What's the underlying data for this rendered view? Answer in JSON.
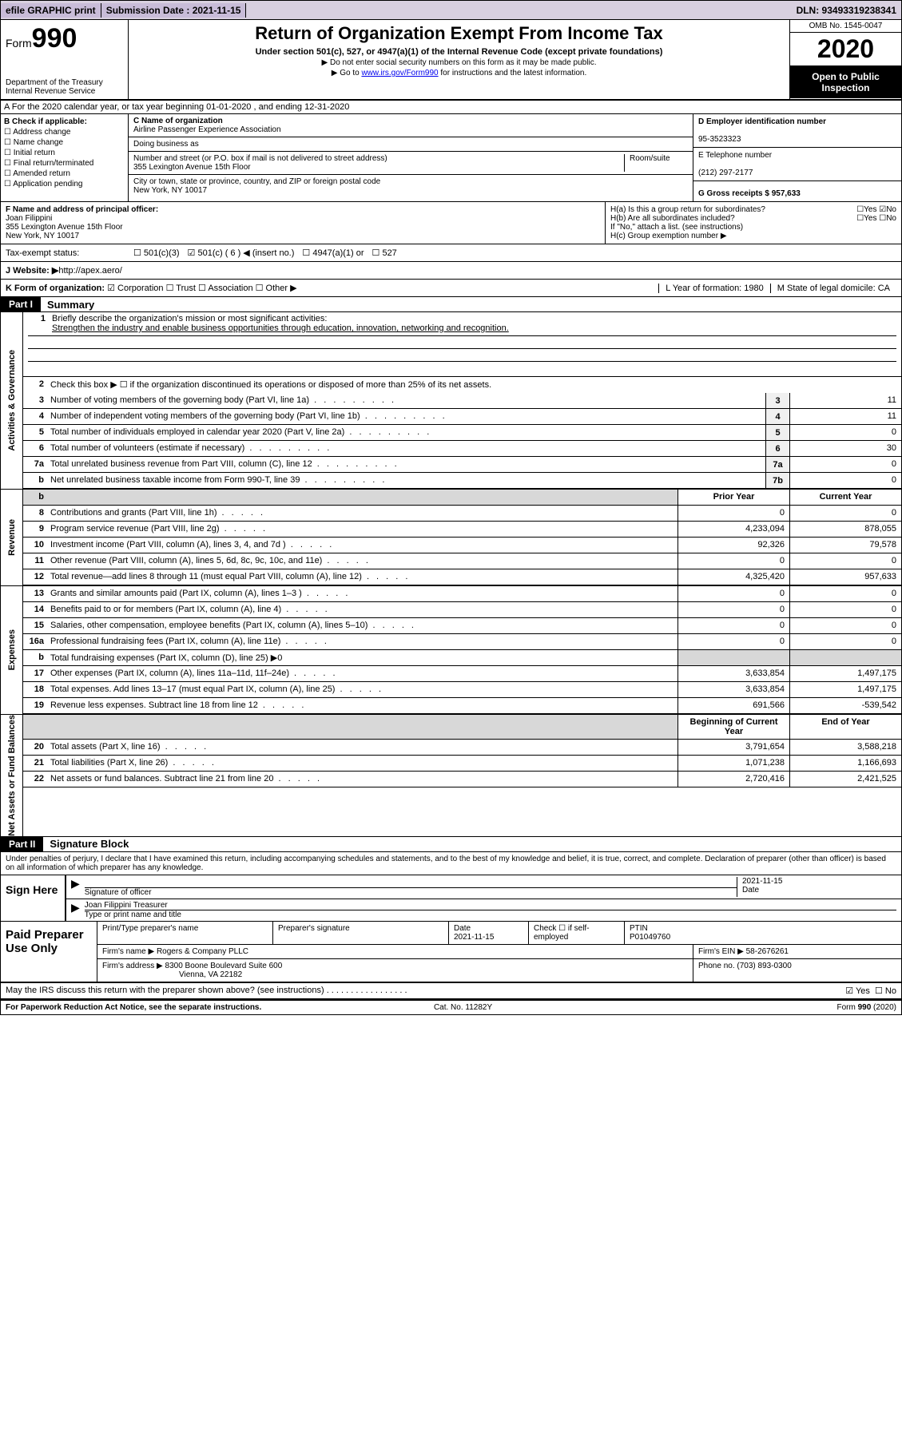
{
  "colors": {
    "topbar_bg": "#d8d0e0",
    "black": "#000000",
    "shade": "#d8d8d8",
    "link": "#0000ee"
  },
  "topbar": {
    "efile": "efile GRAPHIC print",
    "submission_label": "Submission Date : 2021-11-15",
    "dln": "DLN: 93493319238341"
  },
  "header": {
    "form_label": "Form",
    "form_number": "990",
    "dept": "Department of the Treasury\nInternal Revenue Service",
    "title": "Return of Organization Exempt From Income Tax",
    "subtitle": "Under section 501(c), 527, or 4947(a)(1) of the Internal Revenue Code (except private foundations)",
    "note1": "▶ Do not enter social security numbers on this form as it may be made public.",
    "note2_pre": "▶ Go to ",
    "note2_link": "www.irs.gov/Form990",
    "note2_post": " for instructions and the latest information.",
    "omb": "OMB No. 1545-0047",
    "year": "2020",
    "public": "Open to Public Inspection"
  },
  "section_a": "A For the 2020 calendar year, or tax year beginning 01-01-2020   , and ending 12-31-2020",
  "col_b": {
    "label": "B Check if applicable:",
    "items": [
      "☐ Address change",
      "☐ Name change",
      "☐ Initial return",
      "☐ Final return/terminated",
      "☐ Amended return",
      "☐ Application pending"
    ]
  },
  "col_c": {
    "name_label": "C Name of organization",
    "name": "Airline Passenger Experience Association",
    "dba_label": "Doing business as",
    "dba": "",
    "street_label": "Number and street (or P.O. box if mail is not delivered to street address)",
    "room_label": "Room/suite",
    "street": "355 Lexington Avenue 15th Floor",
    "city_label": "City or town, state or province, country, and ZIP or foreign postal code",
    "city": "New York, NY  10017"
  },
  "col_d": {
    "ein_label": "D Employer identification number",
    "ein": "95-3523323",
    "phone_label": "E Telephone number",
    "phone": "(212) 297-2177",
    "gross_label": "G Gross receipts $ 957,633"
  },
  "box_f": {
    "label": "F  Name and address of principal officer:",
    "name": "Joan Filippini",
    "addr1": "355 Lexington Avenue 15th Floor",
    "addr2": "New York, NY  10017",
    "ha": "H(a)  Is this a group return for subordinates?",
    "ha_yes": "☐Yes",
    "ha_no": "☑No",
    "hb": "H(b)  Are all subordinates included?",
    "hb_yes": "☐Yes",
    "hb_no": "☐No",
    "hb_note": "If \"No,\" attach a list. (see instructions)",
    "hc": "H(c)  Group exemption number ▶"
  },
  "tax_status": {
    "label": "Tax-exempt status:",
    "c3": "☐  501(c)(3)",
    "c_checked": "☑  501(c) ( 6 ) ◀ (insert no.)",
    "c4947": "☐  4947(a)(1) or",
    "c527": "☐  527"
  },
  "website": {
    "label": "J  Website: ▶  ",
    "url": "http://apex.aero/"
  },
  "section_k": {
    "label": "K Form of organization:",
    "corp": "☑  Corporation",
    "trust": "☐  Trust",
    "assoc": "☐  Association",
    "other": "☐  Other ▶",
    "year_label": "L Year of formation: 1980",
    "state_label": "M State of legal domicile: CA"
  },
  "part1": {
    "header": "Part I",
    "title": "Summary"
  },
  "governance": {
    "label": "Activities & Governance",
    "q1": "Briefly describe the organization's mission or most significant activities:",
    "mission": "Strengthen the industry and enable business opportunities through education, innovation, networking and recognition.",
    "q2": "Check this box ▶ ☐  if the organization discontinued its operations or disposed of more than 25% of its net assets.",
    "rows": [
      {
        "n": "3",
        "d": "Number of voting members of the governing body (Part VI, line 1a)",
        "box": "3",
        "v": "11"
      },
      {
        "n": "4",
        "d": "Number of independent voting members of the governing body (Part VI, line 1b)",
        "box": "4",
        "v": "11"
      },
      {
        "n": "5",
        "d": "Total number of individuals employed in calendar year 2020 (Part V, line 2a)",
        "box": "5",
        "v": "0"
      },
      {
        "n": "6",
        "d": "Total number of volunteers (estimate if necessary)",
        "box": "6",
        "v": "30"
      },
      {
        "n": "7a",
        "d": "Total unrelated business revenue from Part VIII, column (C), line 12",
        "box": "7a",
        "v": "0"
      },
      {
        "n": "b",
        "d": "Net unrelated business taxable income from Form 990-T, line 39",
        "box": "7b",
        "v": "0"
      }
    ]
  },
  "year_header": {
    "prior": "Prior Year",
    "current": "Current Year"
  },
  "revenue": {
    "label": "Revenue",
    "rows": [
      {
        "n": "8",
        "d": "Contributions and grants (Part VIII, line 1h)",
        "p": "0",
        "c": "0"
      },
      {
        "n": "9",
        "d": "Program service revenue (Part VIII, line 2g)",
        "p": "4,233,094",
        "c": "878,055"
      },
      {
        "n": "10",
        "d": "Investment income (Part VIII, column (A), lines 3, 4, and 7d )",
        "p": "92,326",
        "c": "79,578"
      },
      {
        "n": "11",
        "d": "Other revenue (Part VIII, column (A), lines 5, 6d, 8c, 9c, 10c, and 11e)",
        "p": "0",
        "c": "0"
      },
      {
        "n": "12",
        "d": "Total revenue—add lines 8 through 11 (must equal Part VIII, column (A), line 12)",
        "p": "4,325,420",
        "c": "957,633"
      }
    ]
  },
  "expenses": {
    "label": "Expenses",
    "rows": [
      {
        "n": "13",
        "d": "Grants and similar amounts paid (Part IX, column (A), lines 1–3 )",
        "p": "0",
        "c": "0"
      },
      {
        "n": "14",
        "d": "Benefits paid to or for members (Part IX, column (A), line 4)",
        "p": "0",
        "c": "0"
      },
      {
        "n": "15",
        "d": "Salaries, other compensation, employee benefits (Part IX, column (A), lines 5–10)",
        "p": "0",
        "c": "0"
      },
      {
        "n": "16a",
        "d": "Professional fundraising fees (Part IX, column (A), line 11e)",
        "p": "0",
        "c": "0"
      },
      {
        "n": "b",
        "d": "Total fundraising expenses (Part IX, column (D), line 25) ▶0",
        "p": "",
        "c": "",
        "shade": true
      },
      {
        "n": "17",
        "d": "Other expenses (Part IX, column (A), lines 11a–11d, 11f–24e)",
        "p": "3,633,854",
        "c": "1,497,175"
      },
      {
        "n": "18",
        "d": "Total expenses. Add lines 13–17 (must equal Part IX, column (A), line 25)",
        "p": "3,633,854",
        "c": "1,497,175"
      },
      {
        "n": "19",
        "d": "Revenue less expenses. Subtract line 18 from line 12",
        "p": "691,566",
        "c": "-539,542"
      }
    ]
  },
  "net_header": {
    "begin": "Beginning of Current Year",
    "end": "End of Year"
  },
  "netassets": {
    "label": "Net Assets or Fund Balances",
    "rows": [
      {
        "n": "20",
        "d": "Total assets (Part X, line 16)",
        "p": "3,791,654",
        "c": "3,588,218"
      },
      {
        "n": "21",
        "d": "Total liabilities (Part X, line 26)",
        "p": "1,071,238",
        "c": "1,166,693"
      },
      {
        "n": "22",
        "d": "Net assets or fund balances. Subtract line 21 from line 20",
        "p": "2,720,416",
        "c": "2,421,525"
      }
    ]
  },
  "part2": {
    "header": "Part II",
    "title": "Signature Block",
    "declare": "Under penalties of perjury, I declare that I have examined this return, including accompanying schedules and statements, and to the best of my knowledge and belief, it is true, correct, and complete. Declaration of preparer (other than officer) is based on all information of which preparer has any knowledge."
  },
  "sign": {
    "label": "Sign Here",
    "sig_officer": "Signature of officer",
    "date": "2021-11-15",
    "date_label": "Date",
    "name": "Joan Filippini  Treasurer",
    "name_label": "Type or print name and title"
  },
  "preparer": {
    "label": "Paid Preparer Use Only",
    "print_name_label": "Print/Type preparer's name",
    "sig_label": "Preparer's signature",
    "date_label": "Date",
    "date": "2021-11-15",
    "self_emp": "Check ☐ if self-employed",
    "ptin_label": "PTIN",
    "ptin": "P01049760",
    "firm_name_label": "Firm's name    ▶",
    "firm_name": "Rogers & Company PLLC",
    "firm_ein_label": "Firm's EIN ▶",
    "firm_ein": "58-2676261",
    "firm_addr_label": "Firm's address ▶",
    "firm_addr1": "8300 Boone Boulevard Suite 600",
    "firm_addr2": "Vienna, VA  22182",
    "phone_label": "Phone no.",
    "phone": "(703) 893-0300"
  },
  "discuss": {
    "q": "May the IRS discuss this return with the preparer shown above? (see instructions)",
    "yes": "☑ Yes",
    "no": "☐ No"
  },
  "footer": {
    "left": "For Paperwork Reduction Act Notice, see the separate instructions.",
    "mid": "Cat. No. 11282Y",
    "right": "Form 990 (2020)"
  }
}
